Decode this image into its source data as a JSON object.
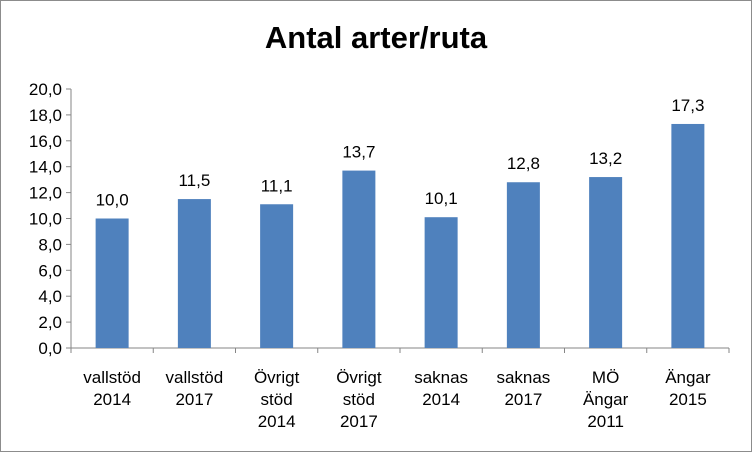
{
  "chart_data": {
    "type": "bar",
    "title": "Antal arter/ruta",
    "xlabel": "",
    "ylabel": "",
    "ylim": [
      0,
      20
    ],
    "yticks": [
      "0,0",
      "2,0",
      "4,0",
      "6,0",
      "8,0",
      "10,0",
      "12,0",
      "14,0",
      "16,0",
      "18,0",
      "20,0"
    ],
    "categories": [
      [
        "vallstöd",
        "2014"
      ],
      [
        "vallstöd",
        "2017"
      ],
      [
        "Övrigt",
        "stöd",
        "2014"
      ],
      [
        "Övrigt",
        "stöd",
        "2017"
      ],
      [
        "saknas",
        "2014"
      ],
      [
        "saknas",
        "2017"
      ],
      [
        "MÖ",
        "Ängar",
        "2011"
      ],
      [
        "Ängar",
        "2015"
      ]
    ],
    "values": [
      10.0,
      11.5,
      11.1,
      13.7,
      10.1,
      12.8,
      13.2,
      17.3
    ],
    "data_labels": [
      "10,0",
      "11,5",
      "11,1",
      "13,7",
      "10,1",
      "12,8",
      "13,2",
      "17,3"
    ],
    "bar_color": "#4f81bd",
    "grid": false,
    "legend": "none"
  }
}
